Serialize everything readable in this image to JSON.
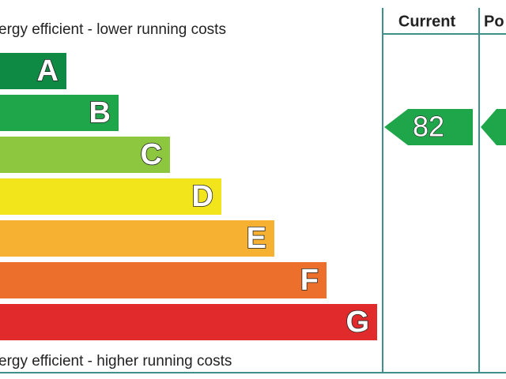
{
  "top_note": "ergy efficient - lower running costs",
  "bottom_note": "ergy efficient - higher running costs",
  "columns": [
    "Current",
    "Po"
  ],
  "bands": [
    {
      "letter": "A",
      "color": "#0f8a45"
    },
    {
      "letter": "B",
      "color": "#1fa64a"
    },
    {
      "letter": "C",
      "color": "#8dc63f"
    },
    {
      "letter": "D",
      "color": "#f2e51c"
    },
    {
      "letter": "E",
      "color": "#f6b133"
    },
    {
      "letter": "F",
      "color": "#ec6f2c"
    },
    {
      "letter": "G",
      "color": "#e12a2c"
    }
  ],
  "current": {
    "value": 82,
    "color": "#1fa64a"
  }
}
